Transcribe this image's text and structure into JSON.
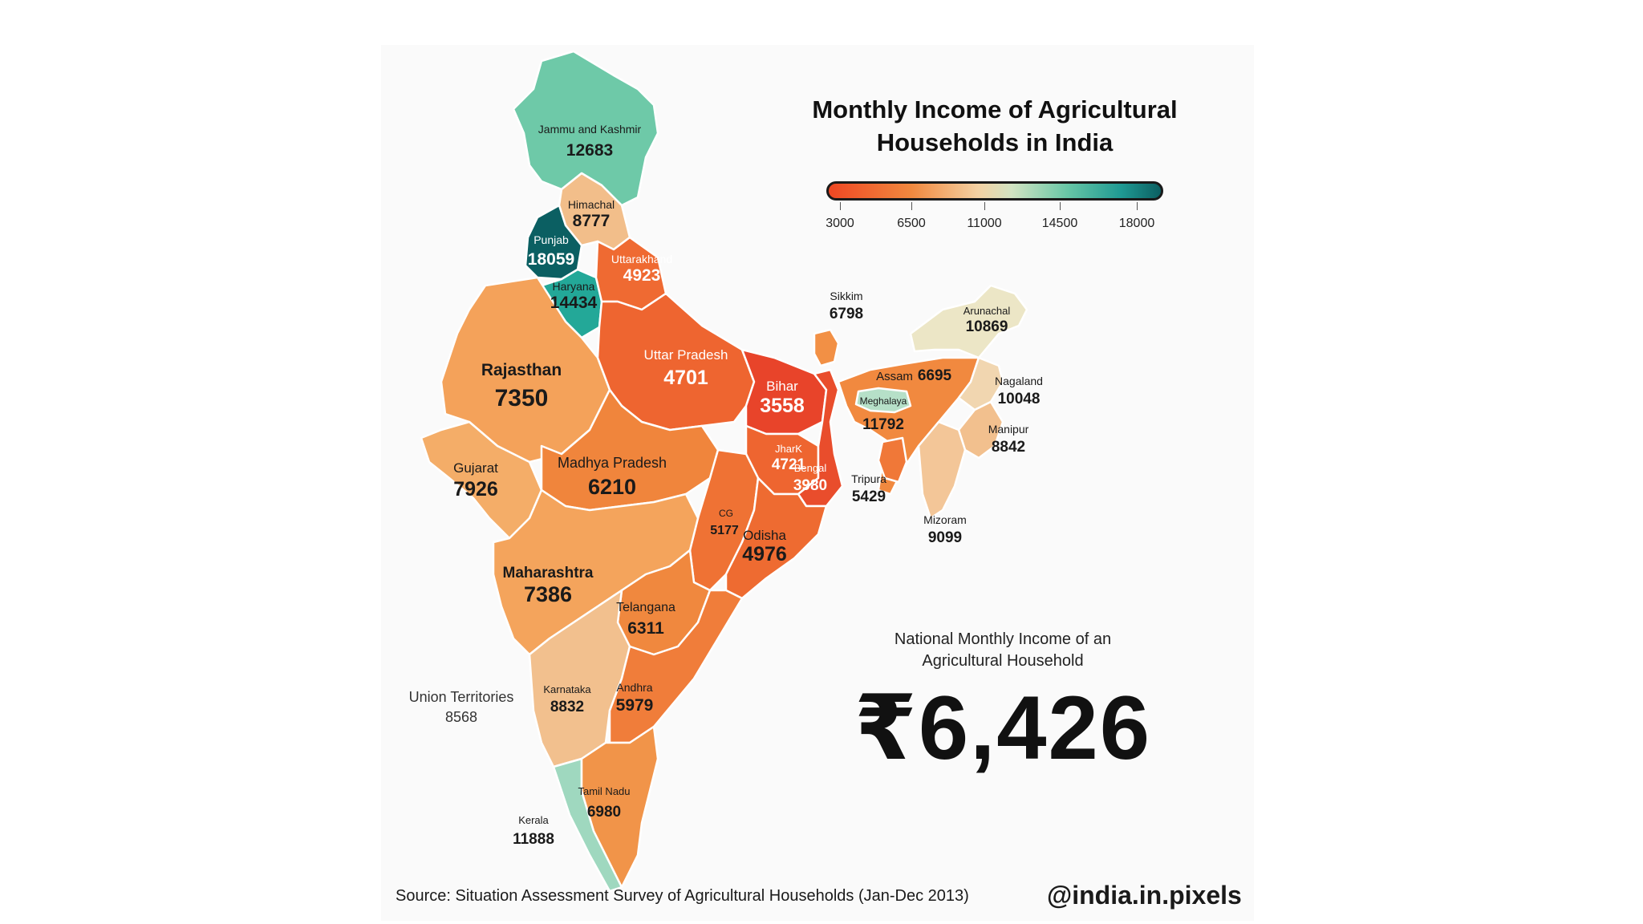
{
  "title": "Monthly Income of Agricultural Households in India",
  "legend": {
    "ticks": [
      "3000",
      "6500",
      "11000",
      "14500",
      "18000"
    ]
  },
  "national": {
    "label": "National Monthly Income of an Agricultural Household",
    "value": "₹6,426"
  },
  "union_territories": {
    "name": "Union Territories",
    "value": "8568"
  },
  "source": "Source: Situation Assessment Survey of Agricultural Households (Jan-Dec 2013)",
  "handle": "@india.in.pixels",
  "states": {
    "jk": {
      "name": "Jammu and Kashmir",
      "value": "12683",
      "color": "#6ec9a8"
    },
    "hp": {
      "name": "Himachal",
      "value": "8777",
      "color": "#f2be8a"
    },
    "pb": {
      "name": "Punjab",
      "value": "18059",
      "color": "#0b5f62"
    },
    "hr": {
      "name": "Haryana",
      "value": "14434",
      "color": "#23a898"
    },
    "uk": {
      "name": "Uttarakhand",
      "value": "4923",
      "color": "#ef6a32"
    },
    "rj": {
      "name": "Rajasthan",
      "value": "7350",
      "color": "#f4a25a"
    },
    "up": {
      "name": "Uttar Pradesh",
      "value": "4701",
      "color": "#ee6530"
    },
    "br": {
      "name": "Bihar",
      "value": "3558",
      "color": "#e8442a"
    },
    "sk": {
      "name": "Sikkim",
      "value": "6798",
      "color": "#f29045"
    },
    "ar": {
      "name": "Arunachal",
      "value": "10869",
      "color": "#ece6c6"
    },
    "as": {
      "name": "Assam",
      "value": "6695",
      "color": "#f1893f"
    },
    "nl": {
      "name": "Nagaland",
      "value": "10048",
      "color": "#f1d6b0"
    },
    "ml": {
      "name": "Meghalaya",
      "value": "11792",
      "color": "#b6e0c8"
    },
    "mn": {
      "name": "Manipur",
      "value": "8842",
      "color": "#f2c08e"
    },
    "tr": {
      "name": "Tripura",
      "value": "5429",
      "color": "#f07838"
    },
    "mz": {
      "name": "Mizoram",
      "value": "9099",
      "color": "#f3c698"
    },
    "gj": {
      "name": "Gujarat",
      "value": "7926",
      "color": "#f4ad68"
    },
    "mp": {
      "name": "Madhya Pradesh",
      "value": "6210",
      "color": "#f0853c"
    },
    "jh": {
      "name": "JharK",
      "value": "4721",
      "color": "#ee6530"
    },
    "wb": {
      "name": "Bengal",
      "value": "3980",
      "color": "#e94d2c"
    },
    "cg": {
      "name": "CG",
      "value": "5177",
      "color": "#ef7234"
    },
    "od": {
      "name": "Odisha",
      "value": "4976",
      "color": "#ee6b31"
    },
    "mh": {
      "name": "Maharashtra",
      "value": "7386",
      "color": "#f4a45c"
    },
    "tg": {
      "name": "Telangana",
      "value": "6311",
      "color": "#f0883e"
    },
    "ka": {
      "name": "Karnataka",
      "value": "8832",
      "color": "#f2c08e"
    },
    "ap": {
      "name": "Andhra",
      "value": "5979",
      "color": "#f07d3a"
    },
    "kl": {
      "name": "Kerala",
      "value": "11888",
      "color": "#9fd8bf"
    },
    "tn": {
      "name": "Tamil Nadu",
      "value": "6980",
      "color": "#f19449"
    }
  }
}
